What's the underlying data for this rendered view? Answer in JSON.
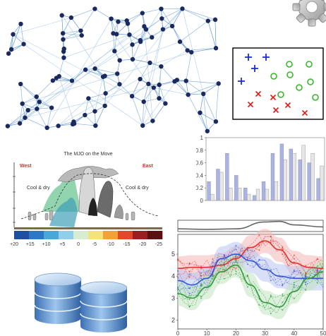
{
  "network": {},
  "scatter": {
    "plus_color": "#1b2fcf",
    "circle_color": "#39b529",
    "cross_color": "#e01b1b",
    "plus_points": [
      [
        352,
        81
      ],
      [
        377,
        81
      ],
      [
        361,
        97
      ],
      [
        342,
        115
      ]
    ],
    "circle_points": [
      [
        410,
        91
      ],
      [
        438,
        91
      ],
      [
        388,
        108
      ],
      [
        411,
        106
      ],
      [
        440,
        116
      ],
      [
        424,
        124
      ],
      [
        398,
        134
      ],
      [
        447,
        138
      ]
    ],
    "cross_points": [
      [
        366,
        133
      ],
      [
        387,
        138
      ],
      [
        355,
        148
      ],
      [
        408,
        149
      ],
      [
        391,
        156
      ],
      [
        432,
        160
      ]
    ]
  },
  "mjo": {
    "title": "The MJO on the Move",
    "west_label": "West",
    "east_label": "East",
    "cool_dry_left": "Cool & dry",
    "cool_dry_right": "Cool & dry",
    "colorbar_ticks": [
      "+20",
      "+15",
      "+10",
      "+5",
      "0",
      "-5",
      "-10",
      "-15",
      "-20",
      "-25"
    ],
    "colorbar_colors": [
      "#1f4fa0",
      "#2d78c6",
      "#4aa7da",
      "#8fd0e6",
      "#d8ecd1",
      "#f4e27a",
      "#f3a23a",
      "#e0482a",
      "#9a1f20",
      "#5a1010"
    ]
  },
  "chart_data": [
    {
      "type": "bar",
      "y_ticks": [
        "0",
        "0.2",
        "0.4",
        "0.6",
        "0.8",
        "1"
      ],
      "ylim": [
        0,
        1
      ],
      "series": [
        {
          "color": "#aab2e6",
          "values": [
            0.3,
            0.5,
            0.75,
            0.4,
            0.2,
            0.08,
            0.3,
            0.75,
            0.9,
            0.82,
            0.65,
            0.6,
            0.35
          ]
        },
        {
          "color": "#e6e6e6",
          "values": [
            0.1,
            0.45,
            0.2,
            0.2,
            0.1,
            0.18,
            0.18,
            0.3,
            0.65,
            0.75,
            0.88,
            0.75,
            0.55
          ]
        }
      ]
    },
    {
      "type": "line",
      "x_ticks": [
        "0",
        "10",
        "20",
        "30",
        "40",
        "50"
      ],
      "y_ticks": [
        "5",
        "4",
        "3",
        "2"
      ],
      "xlim": [
        0,
        50
      ],
      "ylim": [
        1.6,
        5.9
      ],
      "series": [
        {
          "color": "#e0312c",
          "band": "#f4b7b4",
          "points": [
            [
              0,
              4.35
            ],
            [
              5,
              4.4
            ],
            [
              10,
              4.4
            ],
            [
              15,
              4.5
            ],
            [
              20,
              4.8
            ],
            [
              25,
              5.3
            ],
            [
              30,
              5.6
            ],
            [
              35,
              5.2
            ],
            [
              40,
              4.6
            ],
            [
              45,
              4.4
            ],
            [
              50,
              4.35
            ]
          ]
        },
        {
          "color": "#3355d8",
          "band": "#b9c4f1",
          "points": [
            [
              0,
              3.8
            ],
            [
              5,
              3.6
            ],
            [
              10,
              3.9
            ],
            [
              15,
              4.8
            ],
            [
              20,
              5.0
            ],
            [
              25,
              4.7
            ],
            [
              30,
              4.3
            ],
            [
              35,
              4.0
            ],
            [
              40,
              3.9
            ],
            [
              45,
              3.9
            ],
            [
              50,
              3.9
            ]
          ]
        },
        {
          "color": "#2e9a3a",
          "band": "#bfe3bf",
          "points": [
            [
              0,
              3.2
            ],
            [
              5,
              3.0
            ],
            [
              10,
              3.5
            ],
            [
              15,
              4.2
            ],
            [
              20,
              4.5
            ],
            [
              25,
              3.6
            ],
            [
              30,
              2.8
            ],
            [
              35,
              2.6
            ],
            [
              40,
              3.3
            ],
            [
              45,
              3.9
            ],
            [
              50,
              4.2
            ]
          ]
        }
      ]
    }
  ],
  "strip": {
    "color": "#666666",
    "points": [
      [
        0,
        0.2
      ],
      [
        10,
        0.15
      ],
      [
        20,
        0.2
      ],
      [
        30,
        0.9
      ],
      [
        35,
        0.95
      ],
      [
        40,
        0.6
      ],
      [
        50,
        0.4
      ]
    ]
  },
  "database": {}
}
